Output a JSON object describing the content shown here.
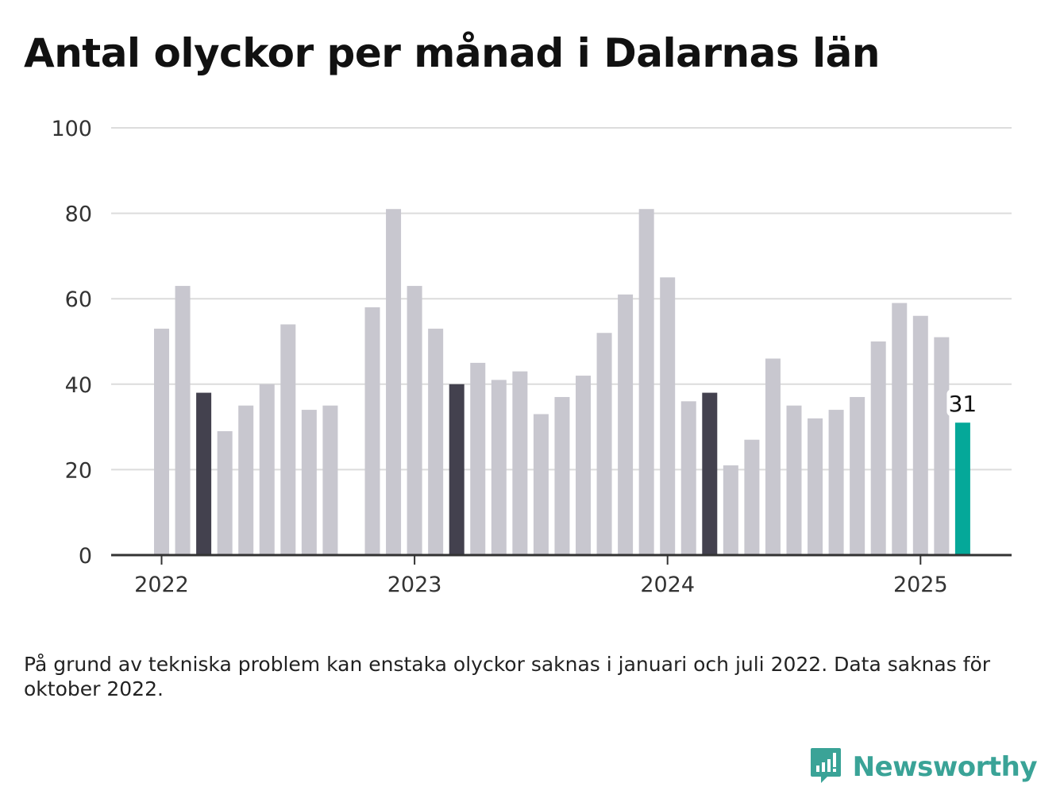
{
  "title": "Antal olyckor per månad i Dalarnas län",
  "note": "På grund av tekniska problem kan enstaka olyckor saknas i januari och juli 2022. Data saknas för oktober 2022.",
  "brand": {
    "name": "Newsworthy",
    "icon": "bar-chart-speech-bubble-icon"
  },
  "colors": {
    "bar_default": "#c8c7cf",
    "bar_highlight": "#43414e",
    "bar_latest": "#05a899",
    "grid": "#dcdcdc",
    "axis": "#333333",
    "brand": "#3aa397"
  },
  "chart_data": {
    "type": "bar",
    "title": "Antal olyckor per månad i Dalarnas län",
    "xlabel": "",
    "ylabel": "",
    "ylim": [
      0,
      100
    ],
    "yticks": [
      "0",
      "20",
      "40",
      "60",
      "80",
      "100"
    ],
    "xticks": [
      {
        "label": "2022",
        "month": "2022-01"
      },
      {
        "label": "2023",
        "month": "2023-01"
      },
      {
        "label": "2024",
        "month": "2024-01"
      },
      {
        "label": "2025",
        "month": "2025-01"
      }
    ],
    "grid": true,
    "months": [
      "2022-01",
      "2022-02",
      "2022-03",
      "2022-04",
      "2022-05",
      "2022-06",
      "2022-07",
      "2022-08",
      "2022-09",
      "2022-10",
      "2022-11",
      "2022-12",
      "2023-01",
      "2023-02",
      "2023-03",
      "2023-04",
      "2023-05",
      "2023-06",
      "2023-07",
      "2023-08",
      "2023-09",
      "2023-10",
      "2023-11",
      "2023-12",
      "2024-01",
      "2024-02",
      "2024-03",
      "2024-04",
      "2024-05",
      "2024-06",
      "2024-07",
      "2024-08",
      "2024-09",
      "2024-10",
      "2024-11",
      "2024-12",
      "2025-01",
      "2025-02",
      "2025-03"
    ],
    "values": [
      53,
      63,
      38,
      29,
      35,
      40,
      54,
      34,
      35,
      null,
      58,
      81,
      63,
      53,
      40,
      45,
      41,
      43,
      33,
      37,
      42,
      52,
      61,
      81,
      65,
      36,
      38,
      21,
      27,
      46,
      35,
      32,
      34,
      37,
      50,
      59,
      56,
      51,
      31
    ],
    "highlighted_months": [
      "2022-03",
      "2023-03",
      "2024-03"
    ],
    "latest_month": "2025-03",
    "latest_label": "31"
  }
}
